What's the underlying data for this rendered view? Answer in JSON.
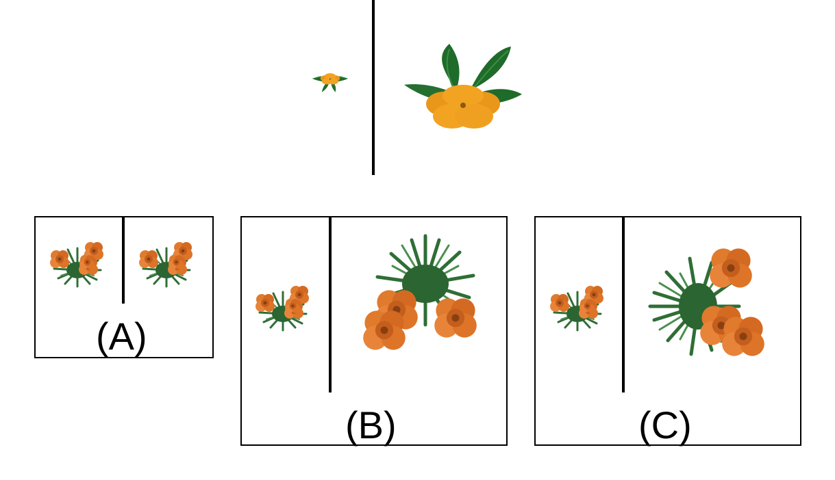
{
  "question": {
    "example_left_icon": "small-flower-icon",
    "example_right_icon": "large-flower-icon"
  },
  "options": [
    {
      "label": "(A)",
      "left_icon": "small-plant-icon",
      "right_icon": "small-plant-icon"
    },
    {
      "label": "(B)",
      "left_icon": "small-plant-icon",
      "right_icon": "large-plant-icon"
    },
    {
      "label": "(C)",
      "left_icon": "small-plant-icon",
      "right_icon": "large-plant-rotated-icon"
    }
  ],
  "colors": {
    "petal": "#f2a322",
    "petal_shadow": "#d88a12",
    "leaf": "#1f6b2a",
    "leaf_light": "#3c8f47",
    "marigold": "#e07a2c",
    "marigold_dark": "#b8561a",
    "grass": "#2f6e36"
  }
}
